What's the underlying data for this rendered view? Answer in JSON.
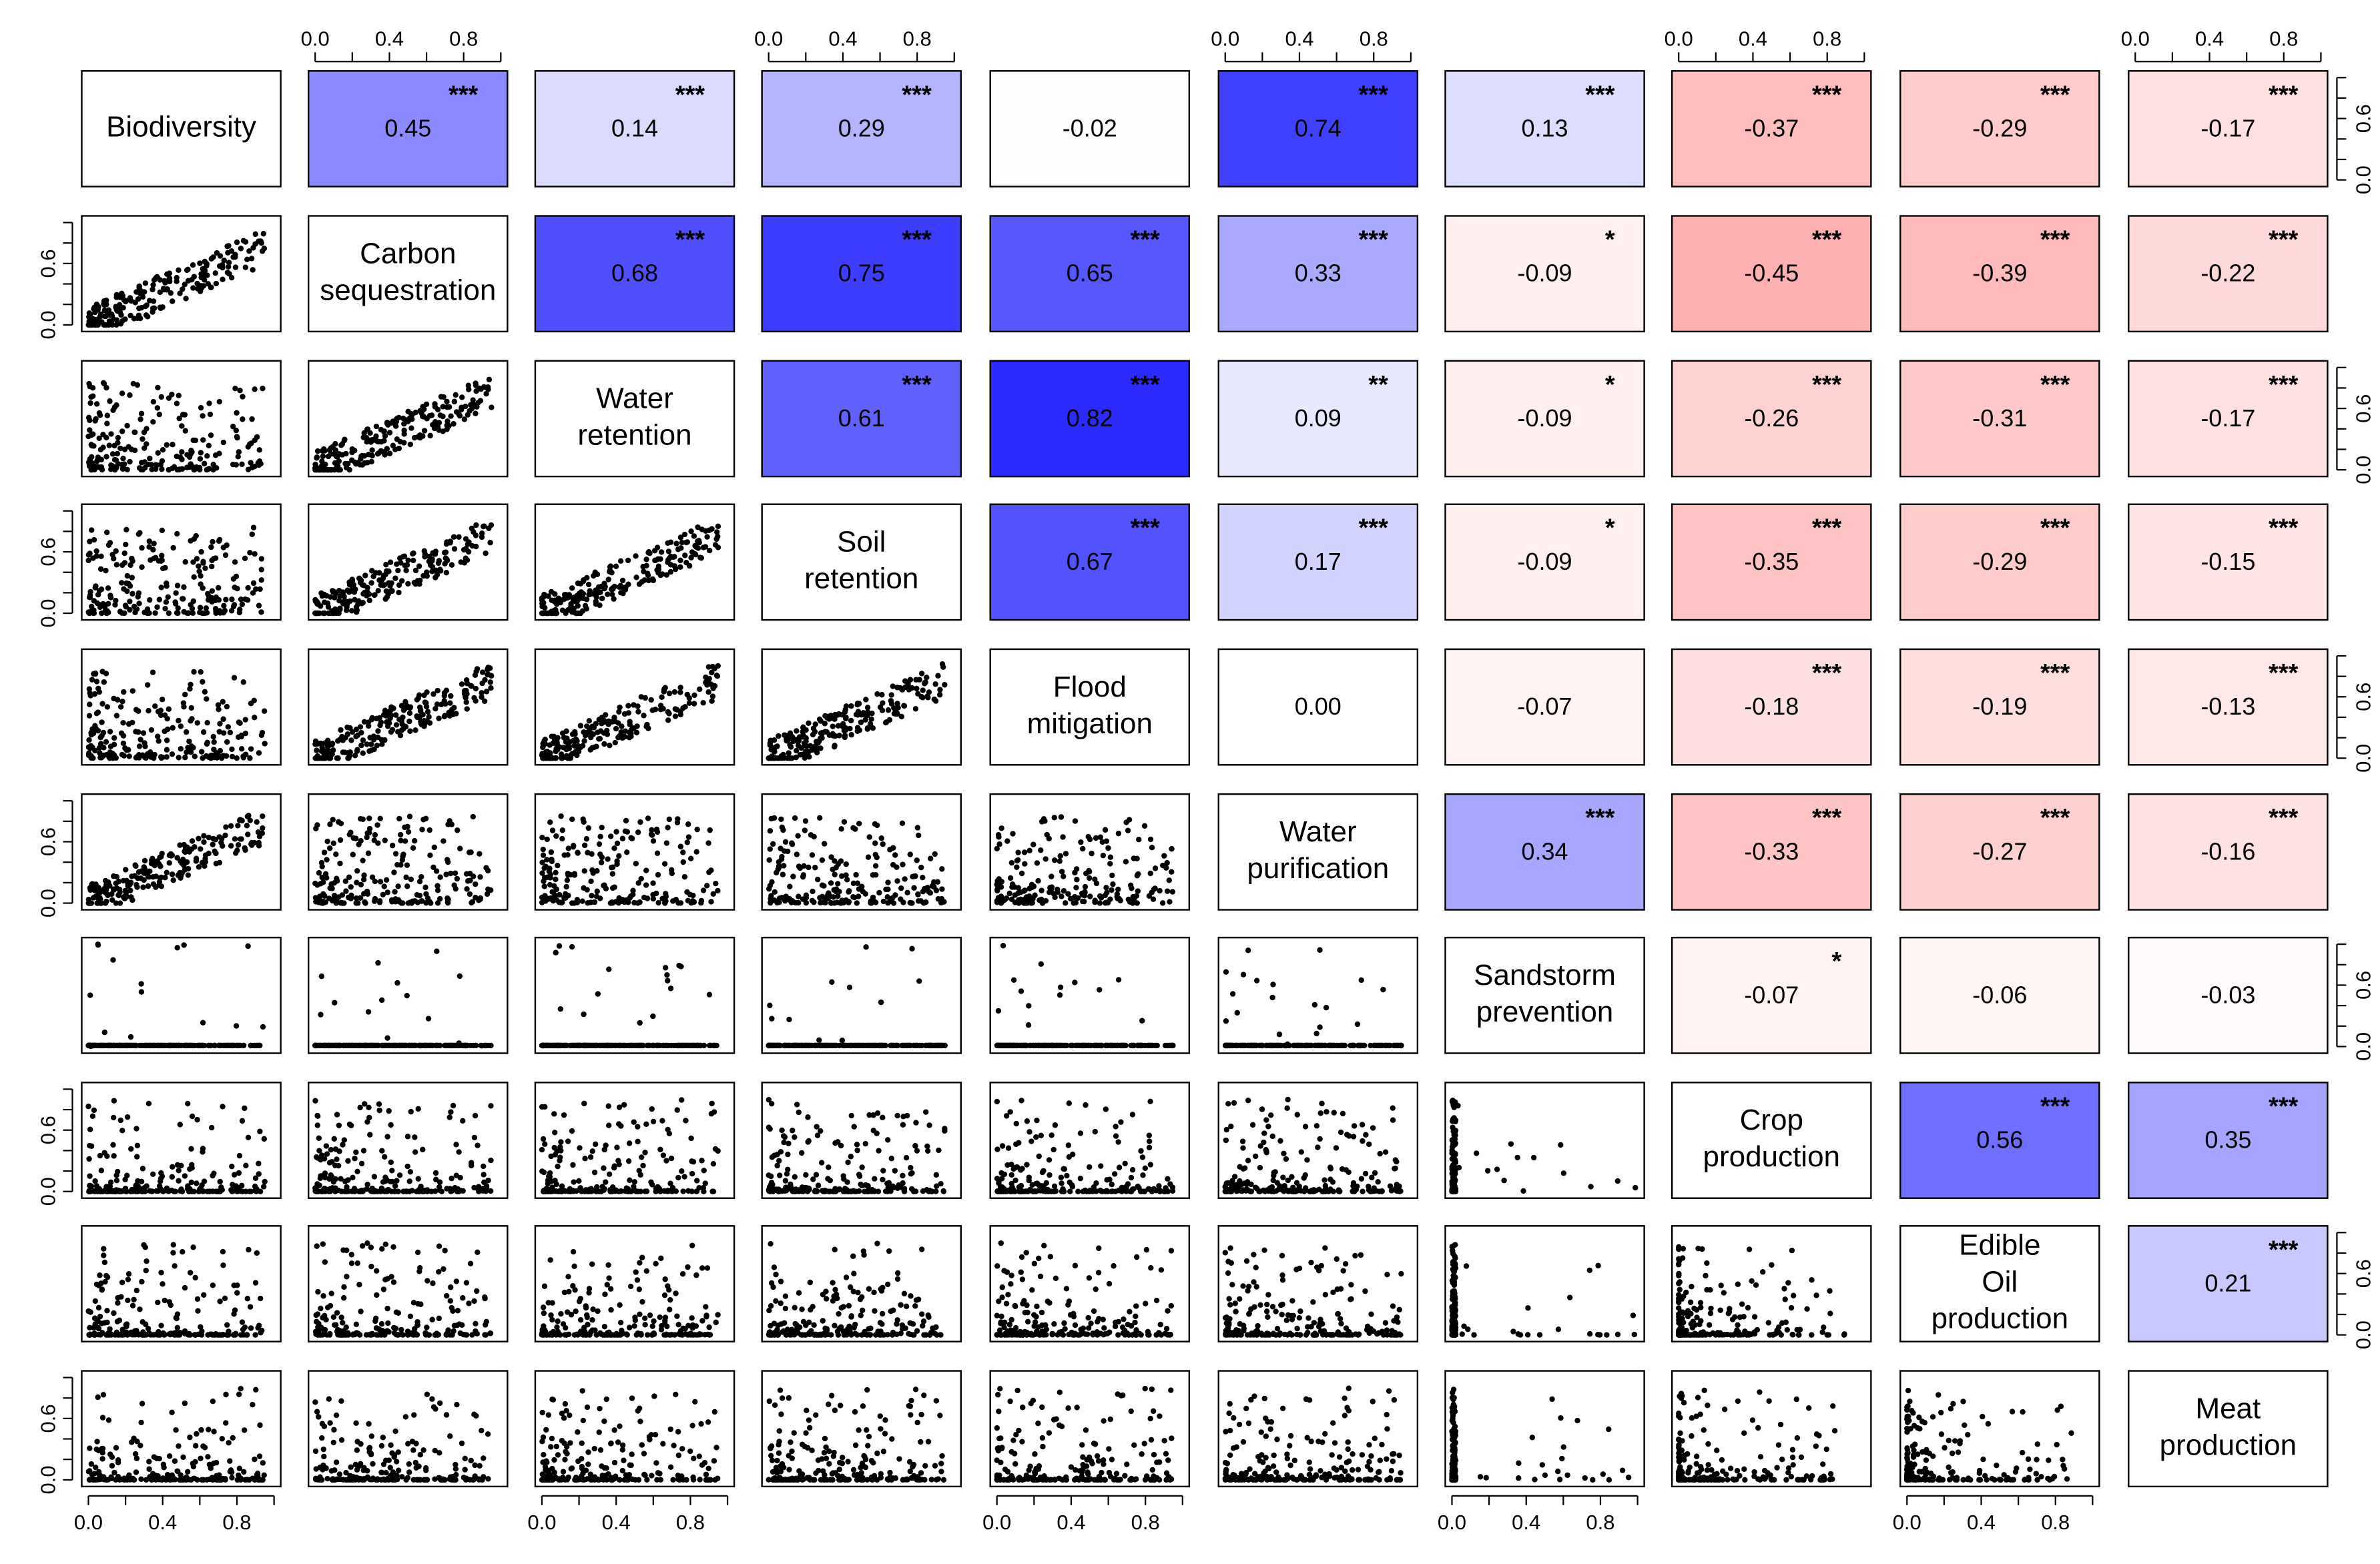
{
  "chart_data": {
    "type": "scatter",
    "title": "",
    "variables": [
      [
        "Biodiversity"
      ],
      [
        "Carbon",
        "sequestration"
      ],
      [
        "Water",
        "retention"
      ],
      [
        "Soil",
        "retention"
      ],
      [
        "Flood",
        "mitigation"
      ],
      [
        "Water",
        "purification"
      ],
      [
        "Sandstorm",
        "prevention"
      ],
      [
        "Crop",
        "production"
      ],
      [
        "Edible",
        "Oil",
        "production"
      ],
      [
        "Meat",
        "production"
      ]
    ],
    "axis_range": [
      0,
      1
    ],
    "x_ticks": [
      0.0,
      0.2,
      0.4,
      0.6,
      0.8,
      1.0
    ],
    "x_tick_labels": [
      "0.0",
      "0.4",
      "0.8"
    ],
    "x_tick_label_values": [
      0.0,
      0.4,
      0.8
    ],
    "y_ticks": [
      0.0,
      0.2,
      0.4,
      0.6,
      0.8,
      1.0
    ],
    "y_tick_labels": [
      "0.0",
      "0.6"
    ],
    "y_tick_label_values": [
      0.0,
      0.6
    ],
    "correlations": [
      [
        "",
        "0.45",
        "0.14",
        "0.29",
        "-0.02",
        "0.74",
        "0.13",
        "-0.37",
        "-0.29",
        "-0.17"
      ],
      [
        "",
        "",
        "0.68",
        "0.75",
        "0.65",
        "0.33",
        "-0.09",
        "-0.45",
        "-0.39",
        "-0.22"
      ],
      [
        "",
        "",
        "",
        "0.61",
        "0.82",
        "0.09",
        "-0.09",
        "-0.26",
        "-0.31",
        "-0.17"
      ],
      [
        "",
        "",
        "",
        "",
        "0.67",
        "0.17",
        "-0.09",
        "-0.35",
        "-0.29",
        "-0.15"
      ],
      [
        "",
        "",
        "",
        "",
        "",
        "0.00",
        "-0.07",
        "-0.18",
        "-0.19",
        "-0.13"
      ],
      [
        "",
        "",
        "",
        "",
        "",
        "",
        "0.34",
        "-0.33",
        "-0.27",
        "-0.16"
      ],
      [
        "",
        "",
        "",
        "",
        "",
        "",
        "",
        "-0.07",
        "-0.06",
        "-0.03"
      ],
      [
        "",
        "",
        "",
        "",
        "",
        "",
        "",
        "",
        "0.56",
        "0.35"
      ],
      [
        "",
        "",
        "",
        "",
        "",
        "",
        "",
        "",
        "",
        "0.21"
      ],
      [
        "",
        "",
        "",
        "",
        "",
        "",
        "",
        "",
        "",
        ""
      ]
    ],
    "significance": [
      [
        "",
        "***",
        "***",
        "***",
        "",
        "***",
        "***",
        "***",
        "***",
        "***"
      ],
      [
        "",
        "",
        "***",
        "***",
        "***",
        "***",
        "*",
        "***",
        "***",
        "***"
      ],
      [
        "",
        "",
        "",
        "***",
        "***",
        "**",
        "*",
        "***",
        "***",
        "***"
      ],
      [
        "",
        "",
        "",
        "",
        "***",
        "***",
        "*",
        "***",
        "***",
        "***"
      ],
      [
        "",
        "",
        "",
        "",
        "",
        "",
        "",
        "***",
        "***",
        "***"
      ],
      [
        "",
        "",
        "",
        "",
        "",
        "",
        "***",
        "***",
        "***",
        "***"
      ],
      [
        "",
        "",
        "",
        "",
        "",
        "",
        "",
        "*",
        "",
        ""
      ],
      [
        "",
        "",
        "",
        "",
        "",
        "",
        "",
        "",
        "***",
        "***"
      ],
      [
        "",
        "",
        "",
        "",
        "",
        "",
        "",
        "",
        "",
        "***"
      ],
      [
        "",
        "",
        "",
        "",
        "",
        "",
        "",
        "",
        "",
        ""
      ]
    ],
    "color_scale": {
      "positive": "#2b2bff",
      "negative": "#ff7070",
      "neutral": "#ffffff",
      "max_abs": 0.82
    }
  }
}
